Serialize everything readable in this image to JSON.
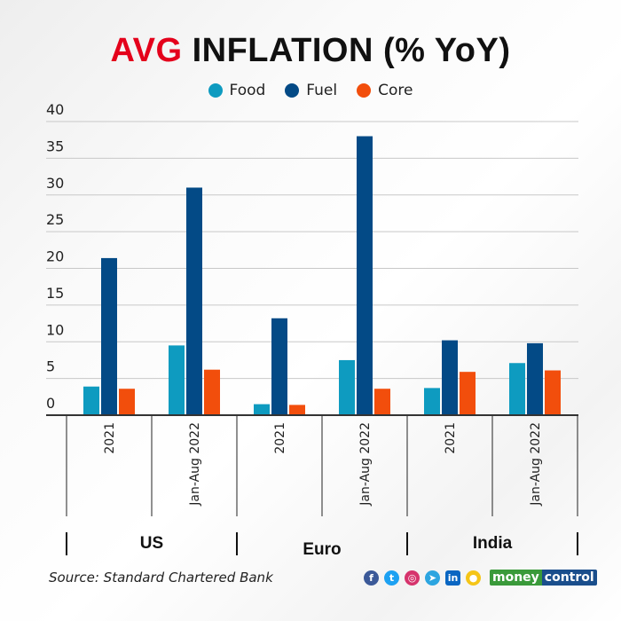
{
  "chart_data": {
    "type": "bar",
    "title_accent": "AVG",
    "title_rest": " INFLATION (% YoY)",
    "categories": [
      "2021",
      "Jan-Aug 2022",
      "2021",
      "Jan-Aug 2022",
      "2021",
      "Jan-Aug 2022"
    ],
    "groups": [
      "US",
      "Euro",
      "India"
    ],
    "series": [
      {
        "name": "Food",
        "color": "#0e9bc0",
        "values": [
          3.9,
          9.5,
          1.5,
          7.5,
          3.7,
          7.1
        ]
      },
      {
        "name": "Fuel",
        "color": "#034a86",
        "values": [
          21.4,
          31.0,
          13.2,
          38.0,
          10.2,
          9.8
        ]
      },
      {
        "name": "Core",
        "color": "#f24e0c",
        "values": [
          3.6,
          6.2,
          1.4,
          3.6,
          5.9,
          6.1
        ]
      }
    ],
    "yticks": [
      "0",
      "5",
      "10",
      "15",
      "20",
      "25",
      "30",
      "35",
      "40"
    ],
    "ylim": [
      0,
      40
    ],
    "grid": true,
    "legend": "top-center"
  },
  "footer": {
    "source": "Source: Standard Chartered Bank",
    "brand_a": "money",
    "brand_b": "control",
    "social_icons": [
      "facebook-icon",
      "twitter-icon",
      "instagram-icon",
      "telegram-icon",
      "linkedin-icon",
      "koo-icon"
    ]
  }
}
